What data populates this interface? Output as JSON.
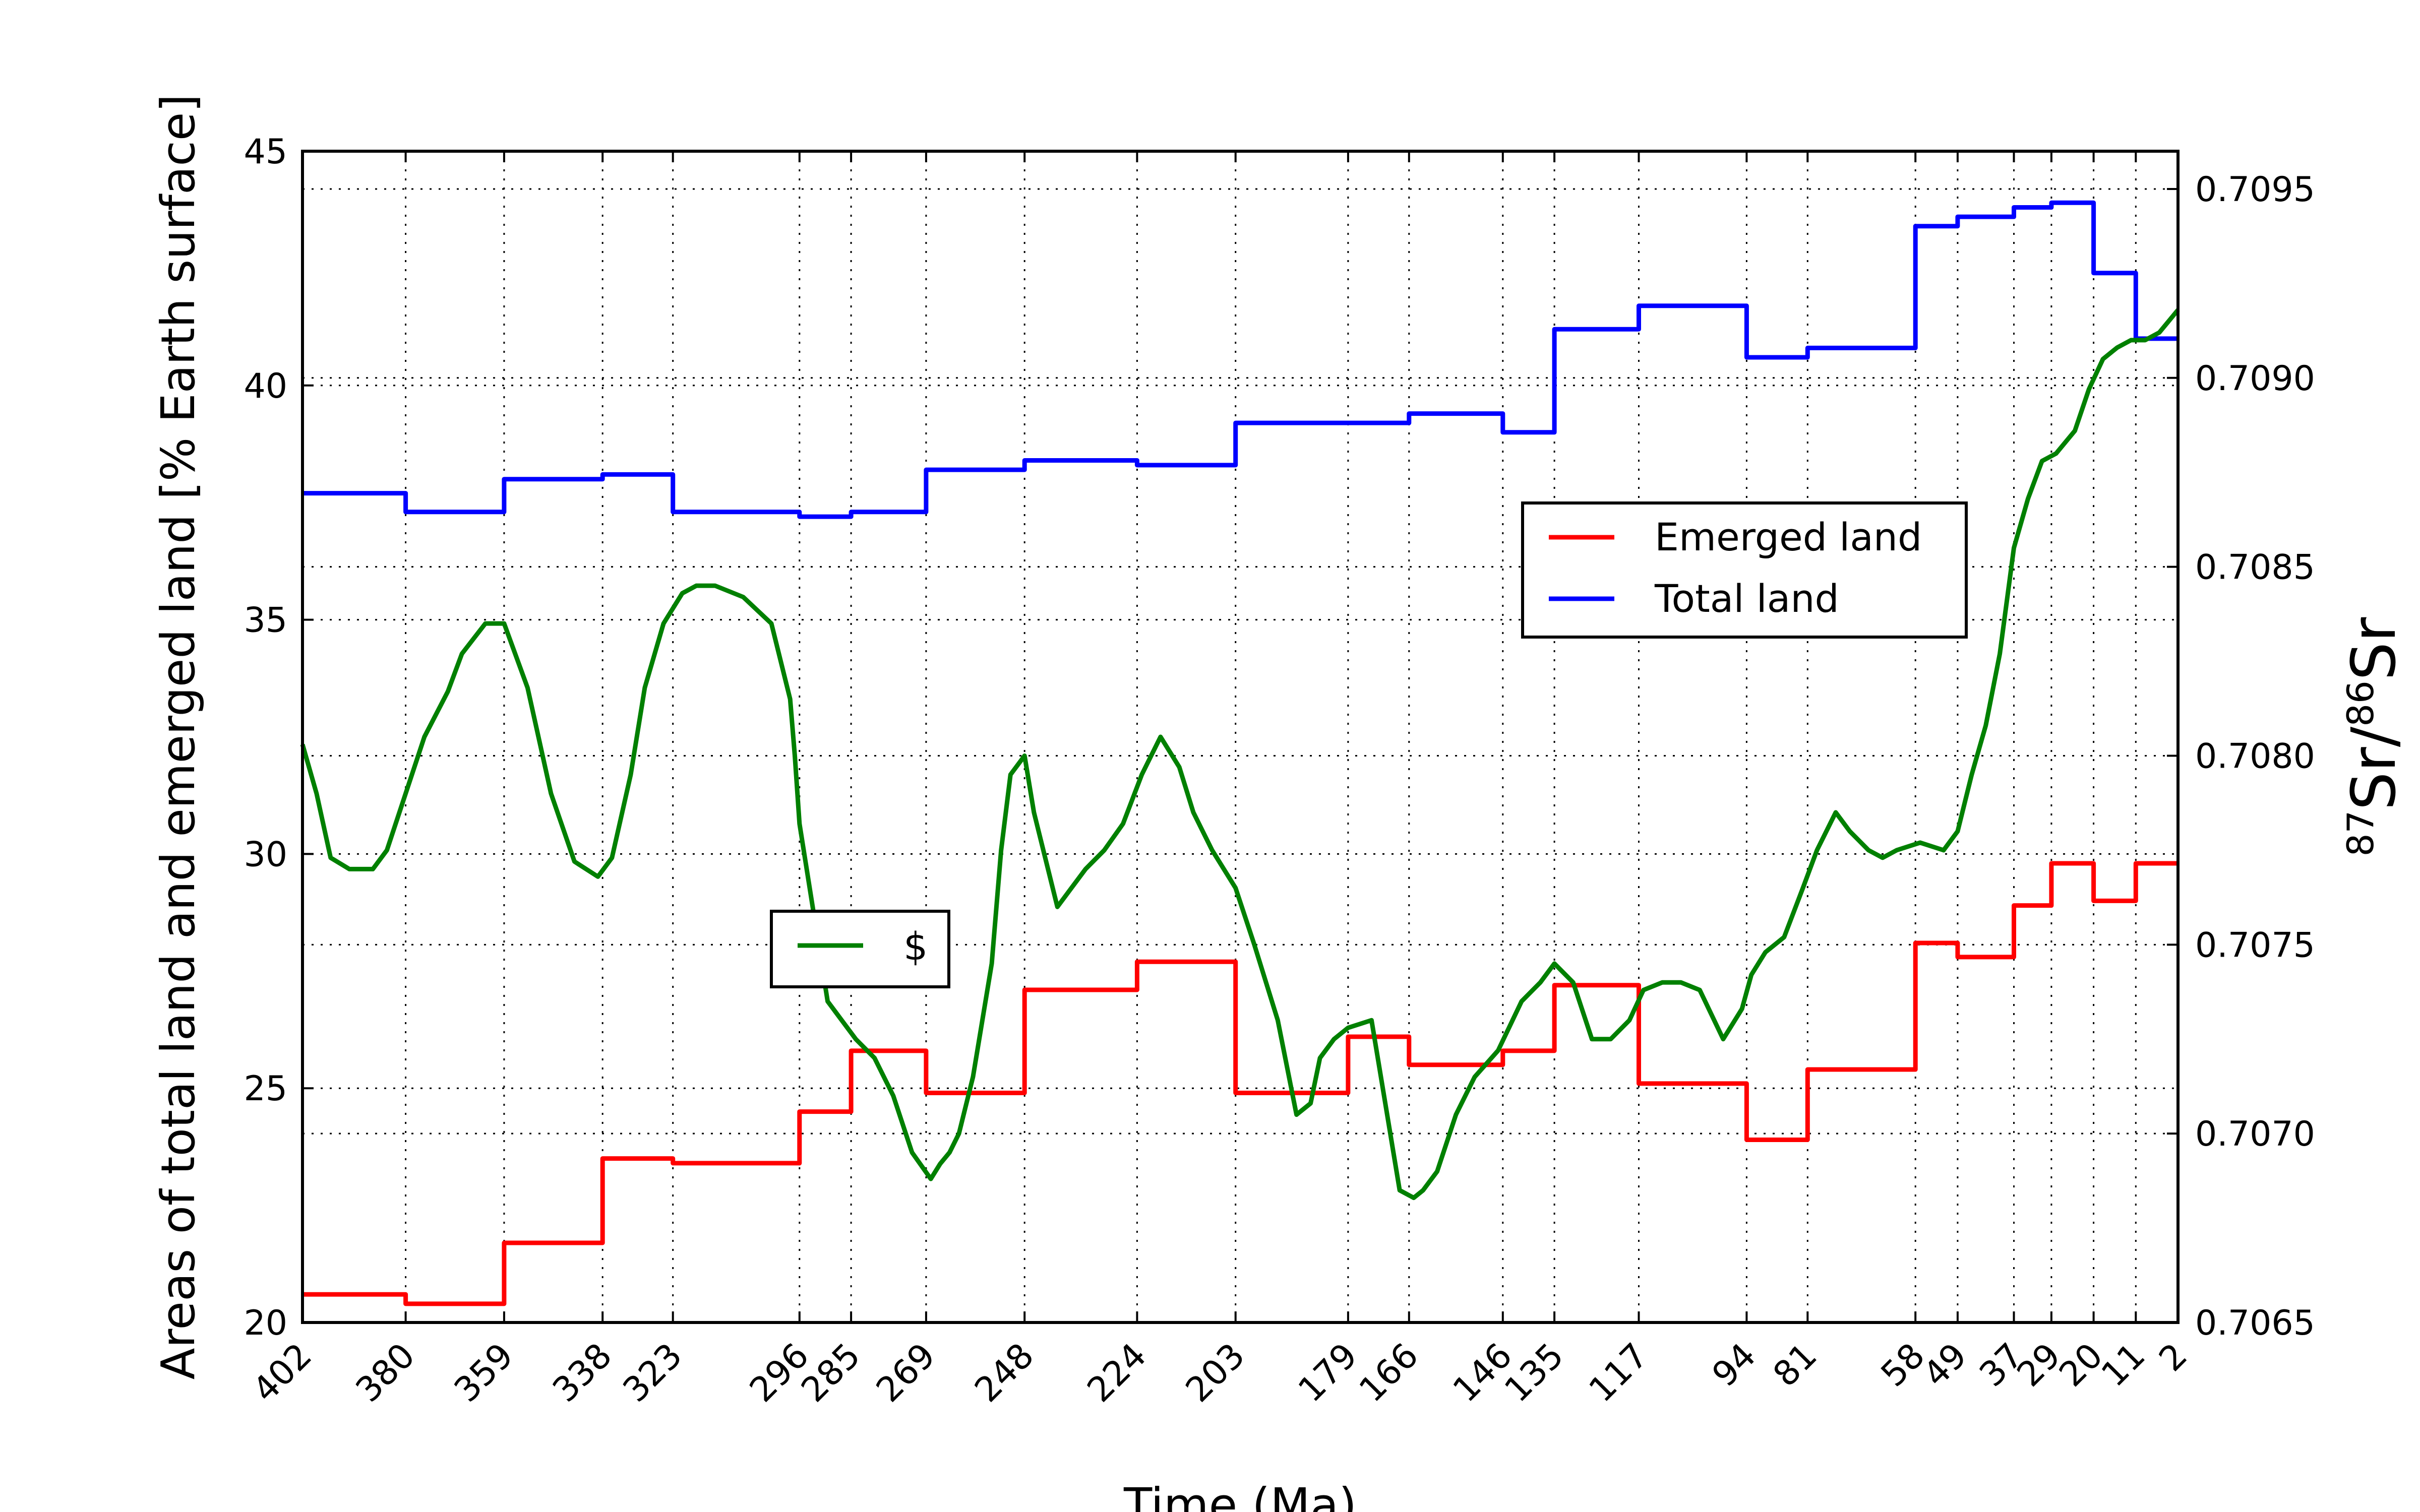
{
  "chart_data": {
    "type": "line",
    "xlabel": "Time (Ma)",
    "ylabel_left": "Areas of total land and emerged land [% Earth surface]",
    "ylabel_right": "87Sr/86Sr",
    "x_reversed": true,
    "xlim": [
      402,
      2
    ],
    "ylim_left": [
      20,
      45
    ],
    "ylim_right": [
      0.7065,
      0.7096
    ],
    "x_ticks": [
      402,
      380,
      359,
      338,
      323,
      296,
      285,
      269,
      248,
      224,
      203,
      179,
      166,
      146,
      135,
      117,
      94,
      81,
      58,
      49,
      37,
      29,
      20,
      11,
      2
    ],
    "y_ticks_left": [
      20,
      25,
      30,
      35,
      40,
      45
    ],
    "y_ticks_right": [
      0.7065,
      0.707,
      0.7075,
      0.708,
      0.7085,
      0.709,
      0.7095
    ],
    "y_tick_labels_right": [
      "0.7065",
      "0.7070",
      "0.7075",
      "0.7080",
      "0.7085",
      "0.7090",
      "0.7095"
    ],
    "grid": true,
    "colors": {
      "emerged": "#ff0000",
      "total": "#0000ff",
      "sr": "#008000"
    },
    "legends": [
      {
        "placement": "center-right",
        "entries": [
          "Emerged land",
          "Total land"
        ]
      },
      {
        "placement": "center-left",
        "entries": [
          "$"
        ]
      }
    ],
    "series": [
      {
        "name": "Emerged land",
        "axis": "left",
        "style": "step",
        "x": [
          402,
          380,
          359,
          338,
          323,
          296,
          285,
          269,
          248,
          224,
          203,
          179,
          166,
          146,
          135,
          117,
          94,
          81,
          58,
          49,
          37,
          29,
          20,
          11,
          2
        ],
        "values": [
          20.6,
          20.4,
          21.7,
          23.5,
          23.4,
          24.5,
          25.8,
          24.9,
          27.1,
          27.7,
          24.9,
          26.1,
          25.5,
          25.8,
          27.2,
          25.1,
          23.9,
          25.4,
          28.1,
          27.8,
          28.9,
          29.8,
          29.0,
          29.8,
          29.8
        ]
      },
      {
        "name": "Total land",
        "axis": "left",
        "style": "step",
        "x": [
          402,
          380,
          359,
          338,
          323,
          296,
          285,
          269,
          248,
          224,
          203,
          179,
          166,
          146,
          135,
          117,
          94,
          81,
          58,
          49,
          37,
          29,
          20,
          11,
          2
        ],
        "values": [
          37.7,
          37.3,
          38.0,
          38.1,
          37.3,
          37.2,
          37.3,
          38.2,
          38.4,
          38.3,
          39.2,
          39.2,
          39.4,
          39.0,
          41.2,
          41.7,
          40.6,
          40.8,
          43.4,
          43.6,
          43.8,
          43.9,
          42.4,
          41.0,
          41.0
        ]
      },
      {
        "name": "",
        "axis": "right",
        "style": "line",
        "x": [
          402,
          399,
          396,
          392,
          387,
          384,
          380,
          376,
          371,
          368,
          363,
          359,
          354,
          349,
          344,
          339,
          336,
          332,
          329,
          325,
          321,
          318,
          314,
          308,
          302,
          298,
          297,
          296,
          290,
          284,
          280,
          276,
          272,
          268,
          266,
          264,
          262,
          259,
          255,
          253,
          251,
          248,
          246,
          243,
          241,
          238,
          235,
          231,
          227,
          223,
          219,
          215,
          212,
          208,
          203,
          199,
          194,
          190,
          187,
          185,
          182,
          179,
          174,
          170,
          168,
          165,
          163,
          160,
          156,
          152,
          147,
          142,
          138,
          135,
          131,
          127,
          123,
          119,
          116,
          112,
          108,
          104,
          99,
          95,
          93,
          90,
          86,
          82,
          79,
          75,
          72,
          68,
          65,
          62,
          57,
          52,
          49,
          46,
          43,
          40,
          37,
          34,
          31,
          28,
          24,
          21,
          18,
          15,
          12,
          9,
          6,
          4,
          2
        ],
        "values": [
          0.70803,
          0.7079,
          0.70773,
          0.7077,
          0.7077,
          0.70775,
          0.7079,
          0.70805,
          0.70817,
          0.70827,
          0.70835,
          0.70835,
          0.70818,
          0.7079,
          0.70772,
          0.70768,
          0.70773,
          0.70795,
          0.70818,
          0.70835,
          0.70843,
          0.70845,
          0.70845,
          0.70842,
          0.70835,
          0.70815,
          0.708,
          0.70782,
          0.70735,
          0.70725,
          0.7072,
          0.7071,
          0.70695,
          0.70688,
          0.70692,
          0.70695,
          0.707,
          0.70715,
          0.70745,
          0.70775,
          0.70795,
          0.708,
          0.70785,
          0.7077,
          0.7076,
          0.70765,
          0.7077,
          0.70775,
          0.70782,
          0.70795,
          0.70805,
          0.70797,
          0.70785,
          0.70775,
          0.70765,
          0.7075,
          0.7073,
          0.70705,
          0.70708,
          0.7072,
          0.70725,
          0.70728,
          0.7073,
          0.707,
          0.70685,
          0.70683,
          0.70685,
          0.7069,
          0.70705,
          0.70715,
          0.70722,
          0.70735,
          0.7074,
          0.70745,
          0.7074,
          0.70725,
          0.70725,
          0.7073,
          0.70738,
          0.7074,
          0.7074,
          0.70738,
          0.70725,
          0.70733,
          0.70742,
          0.70748,
          0.70752,
          0.70765,
          0.70775,
          0.70785,
          0.7078,
          0.70775,
          0.70773,
          0.70775,
          0.70777,
          0.70775,
          0.7078,
          0.70795,
          0.70808,
          0.70827,
          0.70855,
          0.70868,
          0.70878,
          0.7088,
          0.70886,
          0.70897,
          0.70905,
          0.70908,
          0.7091,
          0.7091,
          0.70912,
          0.70915,
          0.70918
        ]
      }
    ]
  }
}
